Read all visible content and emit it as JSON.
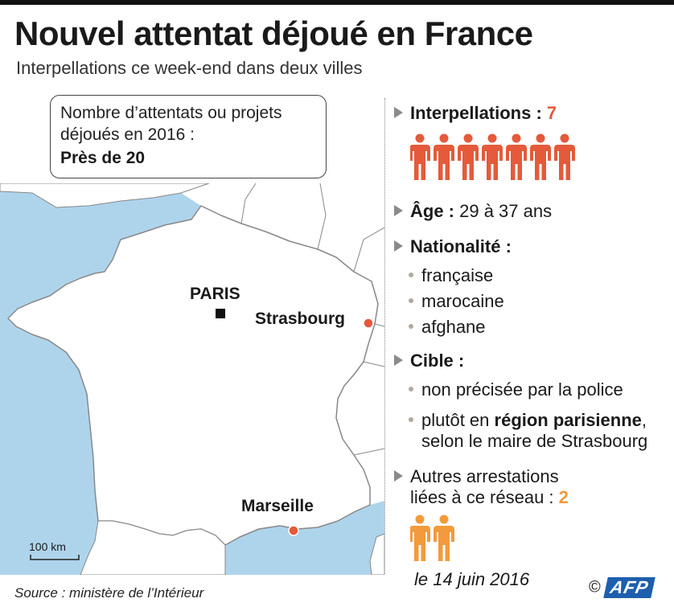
{
  "header": {
    "title": "Nouvel attentat déjoué en France",
    "subtitle": "Interpellations ce week-end dans deux villes"
  },
  "callout": {
    "question": "Nombre d’attentats ou projets déjoués en 2016 :",
    "answer": "Près de 20"
  },
  "map": {
    "cities": [
      {
        "name": "PARIS",
        "marker": "square"
      },
      {
        "name": "Strasbourg",
        "marker": "circle"
      },
      {
        "name": "Marseille",
        "marker": "circle"
      }
    ],
    "scale_label": "100 km",
    "colors": {
      "sea": "#aed4ec",
      "land": "#ffffff",
      "border": "#888888",
      "city_dot": "#e45a3a"
    }
  },
  "facts": {
    "arrests": {
      "label": "Interpellations :",
      "value": "7",
      "count": 7,
      "color": "#e45a3a"
    },
    "age": {
      "label": "Âge :",
      "value": "29 à 37 ans"
    },
    "nationality": {
      "label": "Nationalité :",
      "items": [
        "française",
        "marocaine",
        "afghane"
      ]
    },
    "target": {
      "label": "Cible :",
      "item1": "non précisée par la police",
      "item2_prefix": "plutôt en ",
      "item2_bold": "région parisienne",
      "item2_suffix": ",",
      "item2_line2": "selon le maire de Strasbourg"
    },
    "other": {
      "line1": "Autres arrestations",
      "line2": "liées à ce réseau :",
      "value": "2",
      "count": 2,
      "color": "#f39a3c"
    }
  },
  "footer": {
    "source": "Source : ministère de l’Intérieur",
    "date": "le 14 juin 2016",
    "copyright": "©",
    "agency": "AFP"
  }
}
